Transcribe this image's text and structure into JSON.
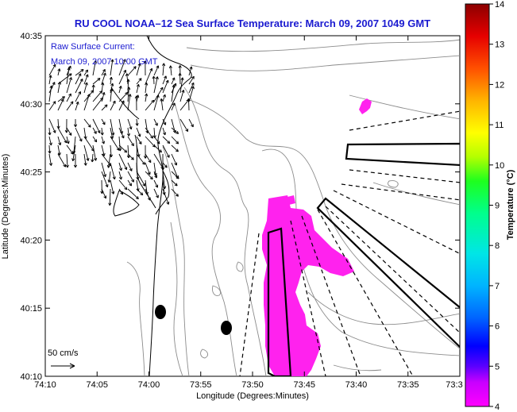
{
  "title": "RU COOL  NOAA–12  Sea Surface Temperature:  March 09, 2007 1049 GMT",
  "annotation": {
    "line1": "Raw Surface Current:",
    "line2": "March 09, 2007 10:00 GMT"
  },
  "scale_label": "50 cm/s",
  "axes": {
    "xlabel": "Longitude (Degrees:Minutes)",
    "ylabel": "Latitude (Degrees:Minutes)",
    "x_ticks": [
      "74:10",
      "74:05",
      "74:00",
      "73:55",
      "73:50",
      "73:45",
      "73:40",
      "73:35",
      "73:3"
    ],
    "y_ticks": [
      "40:35",
      "40:30",
      "40:25",
      "40:20",
      "40:15",
      "40:10"
    ]
  },
  "colorbar": {
    "label": "Temperature (°C)",
    "min": 4,
    "max": 14,
    "ticks": [
      "14",
      "13",
      "12",
      "11",
      "10",
      "9",
      "8",
      "7",
      "6",
      "5",
      "4"
    ]
  },
  "colors": {
    "title": "#1a1ad0",
    "sst_patch": "#ff22ee",
    "contour": "#8c8c8c"
  }
}
